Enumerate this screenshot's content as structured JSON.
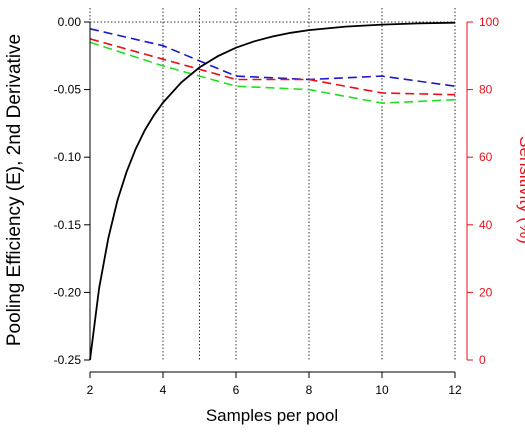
{
  "chart_data": {
    "type": "line",
    "xlabel": "Samples per pool",
    "ylabel_left": "Pooling Efficiency (E), 2nd Derivative",
    "ylabel_right": "Sensitivity (%)",
    "x_ticks": [
      2,
      4,
      6,
      8,
      10,
      12
    ],
    "xlim": [
      2,
      12
    ],
    "ylim_left": [
      -0.25,
      0.0
    ],
    "y_ticks_left": [
      "0.00",
      "-0.05",
      "-0.10",
      "-0.15",
      "-0.20",
      "-0.25"
    ],
    "y_tick_values_left": [
      0.0,
      -0.05,
      -0.1,
      -0.15,
      -0.2,
      -0.25
    ],
    "ylim_right": [
      0,
      100
    ],
    "y_ticks_right": [
      "100",
      "80",
      "60",
      "40",
      "20",
      "0"
    ],
    "y_tick_values_right": [
      100,
      80,
      60,
      40,
      20,
      0
    ],
    "vertical_gridlines_x": [
      2,
      4,
      5,
      6,
      8,
      10,
      12
    ],
    "horizontal_reference_y": 0.0,
    "colors": {
      "efficiency": "#000000",
      "right_axis": "#e8101a",
      "blue": "#1a1acc",
      "red": "#e8101a",
      "green": "#22dd22"
    },
    "efficiency_curve": {
      "axis": "left",
      "style": "solid",
      "x": [
        2,
        2.25,
        2.5,
        2.75,
        3,
        3.25,
        3.5,
        3.75,
        4,
        4.5,
        5,
        5.5,
        6,
        6.5,
        7,
        7.5,
        8,
        9,
        10,
        11,
        12
      ],
      "y": [
        -0.25,
        -0.197,
        -0.16,
        -0.132,
        -0.111,
        -0.094,
        -0.08,
        -0.069,
        -0.0596,
        -0.0447,
        -0.0336,
        -0.0253,
        -0.019,
        -0.0143,
        -0.0107,
        -0.008,
        -0.006,
        -0.0034,
        -0.0019,
        -0.001,
        -0.0005
      ]
    },
    "series": [
      {
        "color_key": "blue",
        "axis": "right",
        "style": "dashed",
        "x": [
          2,
          4,
          6,
          8,
          10,
          12
        ],
        "y": [
          98,
          93,
          84,
          83,
          84,
          81
        ]
      },
      {
        "color_key": "red",
        "axis": "right",
        "style": "dashed",
        "x": [
          2,
          4,
          6,
          8,
          10,
          12
        ],
        "y": [
          95,
          89,
          83,
          83,
          79,
          78.5
        ]
      },
      {
        "color_key": "green",
        "axis": "right",
        "style": "dashed",
        "x": [
          2,
          4,
          6,
          8,
          10,
          12
        ],
        "y": [
          94,
          87,
          81,
          80,
          76,
          77
        ]
      }
    ]
  }
}
